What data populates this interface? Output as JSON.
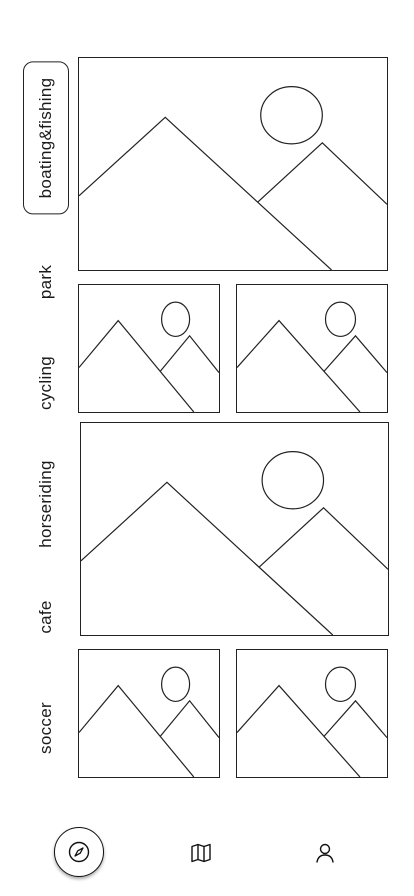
{
  "categories": [
    {
      "key": "boating",
      "label": "boating&fishing",
      "active": true
    },
    {
      "key": "park",
      "label": "park",
      "active": false
    },
    {
      "key": "cycling",
      "label": "cycling",
      "active": false
    },
    {
      "key": "horseriding",
      "label": "horseriding",
      "active": false
    },
    {
      "key": "cafe",
      "label": "cafe",
      "active": false
    },
    {
      "key": "soccer",
      "label": "soccer",
      "active": false
    }
  ],
  "gallery": {
    "image_placeholder_icon": "image-placeholder-icon",
    "tiles": [
      "image-tile",
      "image-tile",
      "image-tile",
      "image-tile",
      "image-tile",
      "image-tile",
      "image-tile"
    ]
  },
  "bottom_nav": {
    "items": [
      {
        "name": "explore",
        "icon": "compass-icon",
        "selected": true
      },
      {
        "name": "map",
        "icon": "map-icon",
        "selected": false
      },
      {
        "name": "profile",
        "icon": "person-icon",
        "selected": false
      }
    ]
  },
  "colors": {
    "line": "#222222",
    "background": "#ffffff"
  }
}
